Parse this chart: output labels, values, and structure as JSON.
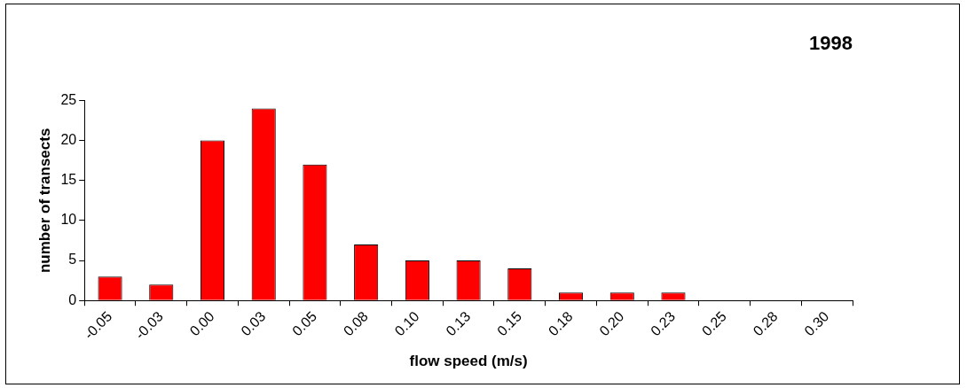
{
  "chart_data": {
    "type": "bar",
    "title": "1998",
    "xlabel": "flow speed (m/s)",
    "ylabel": "number of transects",
    "categories": [
      "-0.05",
      "-0.03",
      "0.00",
      "0.03",
      "0.05",
      "0.08",
      "0.10",
      "0.13",
      "0.15",
      "0.18",
      "0.20",
      "0.23",
      "0.25",
      "0.28",
      "0.30"
    ],
    "values": [
      3,
      2,
      20,
      24,
      17,
      7,
      5,
      5,
      4,
      1,
      1,
      1,
      0,
      0,
      0
    ],
    "color": "#ff0000",
    "ylim": [
      0,
      25
    ],
    "yticks": [
      0,
      5,
      10,
      15,
      20,
      25
    ],
    "grid": false,
    "legend": false
  }
}
